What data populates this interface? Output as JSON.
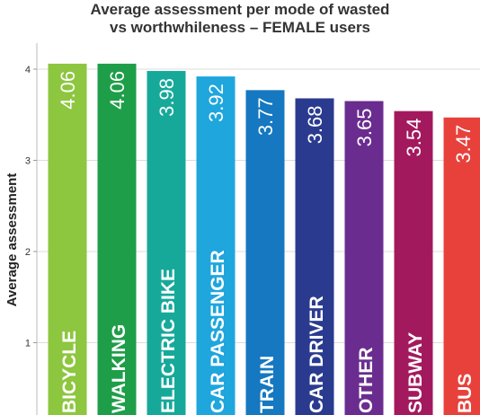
{
  "chart_data": {
    "type": "bar",
    "title_line1": "Average assessment per mode of wasted",
    "title_line2": "vs worthwhileness – FEMALE users",
    "ylabel": "Average assessment",
    "xlabel": "",
    "ylim": [
      0,
      4.2
    ],
    "yticks": [
      "1",
      "2",
      "3",
      "4"
    ],
    "grid": true,
    "legend": "none",
    "categories": [
      "BICYCLE",
      "WALKING",
      "ELECTRIC BIKE",
      "CAR PASSENGER",
      "TRAIN",
      "CAR DRIVER",
      "OTHER",
      "SUBWAY",
      "BUS"
    ],
    "values": [
      4.06,
      4.06,
      3.98,
      3.92,
      3.77,
      3.68,
      3.65,
      3.54,
      3.47
    ],
    "value_labels": [
      "4.06",
      "4.06",
      "3.98",
      "3.92",
      "3.77",
      "3.68",
      "3.65",
      "3.54",
      "3.47"
    ],
    "colors": [
      "#8dc63f",
      "#1e9e48",
      "#16a99a",
      "#1ea6dd",
      "#1578c0",
      "#2a3b8f",
      "#6a2d8f",
      "#a3195e",
      "#e8413c"
    ]
  }
}
